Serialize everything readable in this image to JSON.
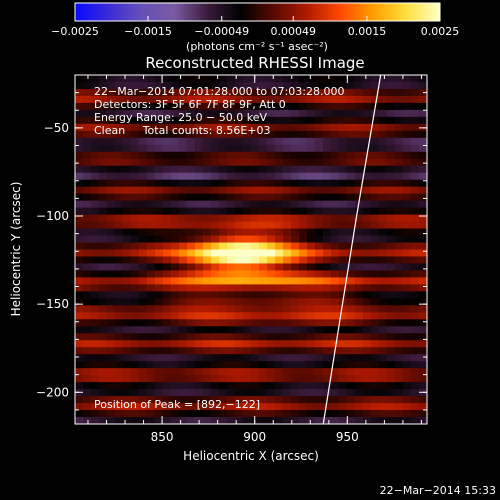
{
  "chart_data": {
    "type": "heatmap",
    "title": "Reconstructed RHESSI Image",
    "xlabel": "Heliocentric X (arcsec)",
    "ylabel": "Heliocentric Y (arcsec)",
    "xlim": [
      803,
      993
    ],
    "ylim": [
      -218,
      -20
    ],
    "xticks": [
      850,
      900,
      950
    ],
    "yticks": [
      -50,
      -100,
      -150,
      -200
    ],
    "x_tick_labels": [
      "850",
      "900",
      "950"
    ],
    "y_tick_labels": [
      "−50",
      "−100",
      "−150",
      "−200"
    ],
    "colorbar": {
      "label": "(photons cm⁻² s⁻¹ asec⁻²)",
      "range": [
        -0.0025,
        0.0025
      ],
      "ticks": [
        "−0.0025",
        "−0.0015",
        "−0.00049",
        "0.00049",
        "0.0015",
        "0.0025"
      ],
      "colors": [
        "#0a0aff",
        "#3a2ad8",
        "#6650b8",
        "#7a5aa0",
        "#3a1a3a",
        "#000000",
        "#5a0a00",
        "#b01a00",
        "#ff4a00",
        "#ffa000",
        "#ffe040",
        "#ffffc8"
      ]
    },
    "annotations": [
      "22−Mar−2014 07:01:28.000 to 07:03:28.000",
      "Detectors: 3F 5F 6F 7F 8F 9F, Att 0",
      "Energy Range: 25.0 − 50.0 keV",
      "Clean     Total counts: 8.56E+03"
    ],
    "peak_label": "Position of Peak = [892,−122]",
    "peak": {
      "x": 892,
      "y": -122,
      "value": 0.0025
    },
    "limb_line": {
      "points": [
        [
          968,
          -20
        ],
        [
          955,
          -100
        ],
        [
          937,
          -218
        ]
      ]
    }
  },
  "footer": {
    "timestamp": "22−Mar−2014 15:33"
  }
}
